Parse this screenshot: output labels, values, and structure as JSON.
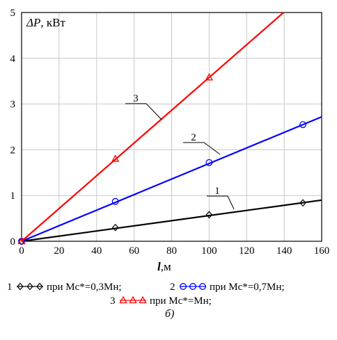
{
  "chart_data": {
    "type": "line",
    "ylabel_symbol": "ΔP",
    "ylabel_unit": ", кВт",
    "xlabel_symbol": "l",
    "xlabel_unit": ",м",
    "xlim": [
      0,
      160
    ],
    "ylim": [
      0,
      5
    ],
    "xticks": [
      0,
      20,
      40,
      60,
      80,
      100,
      120,
      140,
      160
    ],
    "yticks": [
      0,
      1,
      2,
      3,
      4,
      5
    ],
    "grid": true,
    "series": [
      {
        "curve_number": "1",
        "legend_label": "при Мс*=0,3Мн;",
        "color": "#000000",
        "marker": "diamond",
        "slope": 0.00562,
        "markers": [
          {
            "x": 0,
            "y": 0
          },
          {
            "x": 50,
            "y": 0.3
          },
          {
            "x": 100,
            "y": 0.58
          },
          {
            "x": 150,
            "y": 0.84
          }
        ]
      },
      {
        "curve_number": "2",
        "legend_label": "при Мс*=0,7Мн;",
        "color": "#0000ff",
        "marker": "circle",
        "slope": 0.017,
        "markers": [
          {
            "x": 0,
            "y": 0
          },
          {
            "x": 50,
            "y": 0.87
          },
          {
            "x": 100,
            "y": 1.72
          },
          {
            "x": 150,
            "y": 2.55
          }
        ]
      },
      {
        "curve_number": "3",
        "legend_label": "при Мс*=Мн;",
        "color": "#ff0000",
        "marker": "triangle",
        "slope": 0.0358,
        "markers": [
          {
            "x": 0,
            "y": 0
          },
          {
            "x": 50,
            "y": 1.8
          },
          {
            "x": 100,
            "y": 3.58
          }
        ]
      }
    ],
    "caption": "б)"
  }
}
